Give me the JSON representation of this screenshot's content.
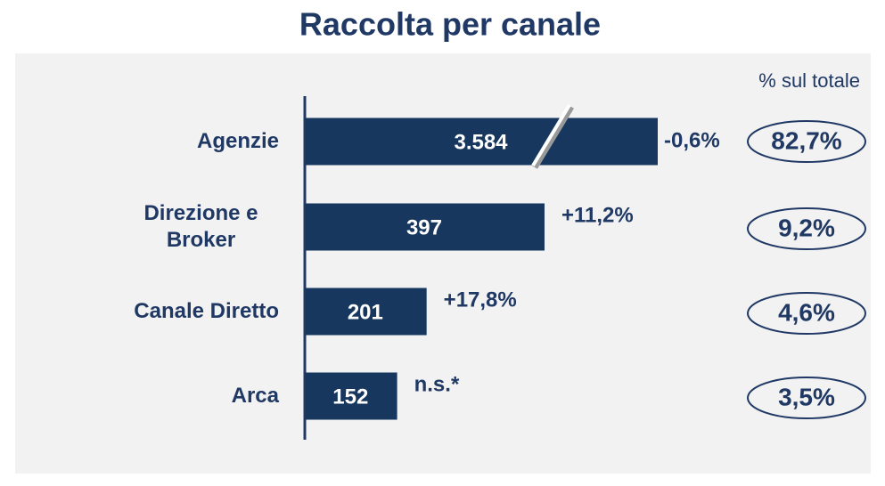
{
  "chart_data": {
    "type": "bar",
    "orientation": "horizontal",
    "title": "Raccolta per canale",
    "categories": [
      "Agenzie",
      "Direzione e Broker",
      "Canale Diretto",
      "Arca"
    ],
    "values": [
      3584,
      397,
      201,
      152
    ],
    "value_labels": [
      "3.584",
      "397",
      "201",
      "152"
    ],
    "color": "#17375e",
    "axis_break": true,
    "changes": [
      "-0,6%",
      "+11,2%",
      "+17,8%",
      "n.s.*"
    ],
    "share_label": "% sul totale",
    "shares": [
      82.7,
      9.2,
      4.6,
      3.5
    ],
    "share_labels": [
      "82,7%",
      "9,2%",
      "4,6%",
      "3,5%"
    ]
  }
}
